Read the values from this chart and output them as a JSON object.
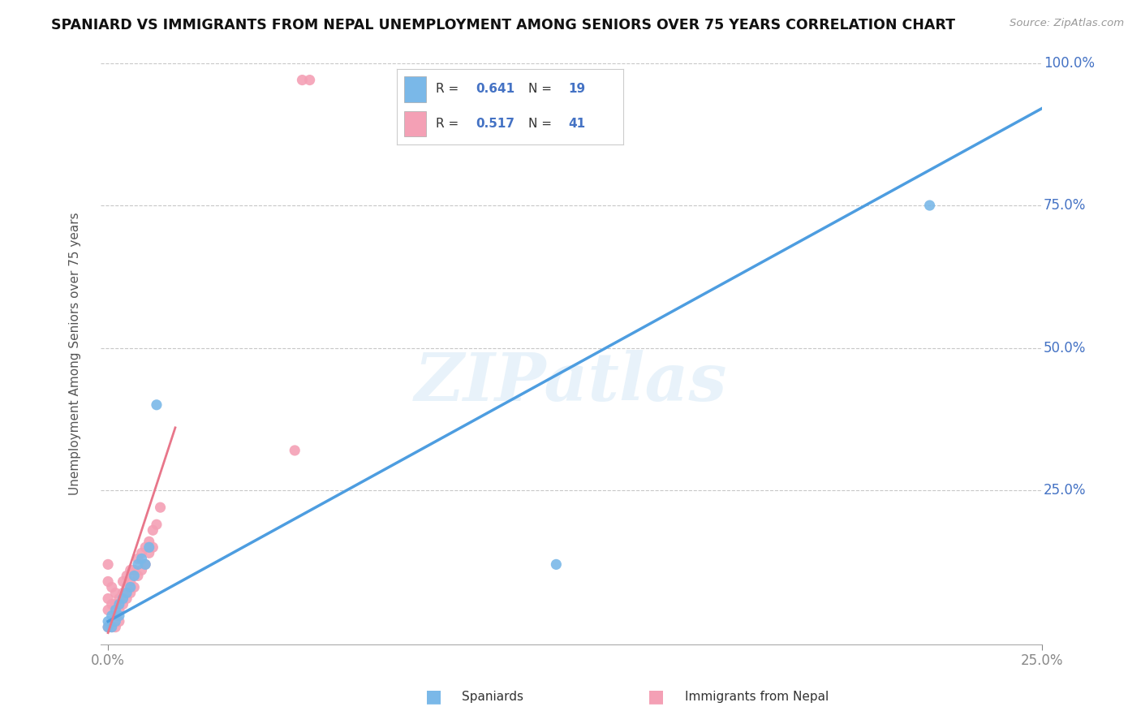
{
  "title": "SPANIARD VS IMMIGRANTS FROM NEPAL UNEMPLOYMENT AMONG SENIORS OVER 75 YEARS CORRELATION CHART",
  "source": "Source: ZipAtlas.com",
  "ylabel": "Unemployment Among Seniors over 75 years",
  "xlabel_blue": "Spaniards",
  "xlabel_pink": "Immigrants from Nepal",
  "xlim": [
    -0.002,
    0.25
  ],
  "ylim": [
    -0.02,
    1.0
  ],
  "R_blue": 0.641,
  "N_blue": 19,
  "R_pink": 0.517,
  "N_pink": 41,
  "color_blue": "#7ab8e8",
  "color_pink": "#f4a0b5",
  "trend_blue": "#4d9de0",
  "trend_pink": "#e8768a",
  "watermark": "ZIPatlas",
  "blue_scatter_x": [
    0.0,
    0.0,
    0.001,
    0.001,
    0.002,
    0.002,
    0.003,
    0.003,
    0.004,
    0.005,
    0.006,
    0.007,
    0.008,
    0.009,
    0.01,
    0.011,
    0.013,
    0.12,
    0.22
  ],
  "blue_scatter_y": [
    0.01,
    0.02,
    0.01,
    0.03,
    0.02,
    0.04,
    0.03,
    0.05,
    0.06,
    0.07,
    0.08,
    0.1,
    0.12,
    0.13,
    0.12,
    0.15,
    0.4,
    0.12,
    0.75
  ],
  "pink_scatter_x": [
    0.0,
    0.0,
    0.0,
    0.0,
    0.0,
    0.001,
    0.001,
    0.001,
    0.002,
    0.002,
    0.002,
    0.002,
    0.003,
    0.003,
    0.003,
    0.004,
    0.004,
    0.004,
    0.005,
    0.005,
    0.005,
    0.006,
    0.006,
    0.006,
    0.007,
    0.007,
    0.008,
    0.008,
    0.009,
    0.009,
    0.01,
    0.01,
    0.011,
    0.011,
    0.012,
    0.012,
    0.013,
    0.014,
    0.05,
    0.052,
    0.054
  ],
  "pink_scatter_y": [
    0.01,
    0.04,
    0.06,
    0.09,
    0.12,
    0.01,
    0.05,
    0.08,
    0.01,
    0.03,
    0.05,
    0.07,
    0.02,
    0.04,
    0.06,
    0.05,
    0.07,
    0.09,
    0.06,
    0.08,
    0.1,
    0.07,
    0.09,
    0.11,
    0.08,
    0.11,
    0.1,
    0.13,
    0.11,
    0.14,
    0.12,
    0.15,
    0.14,
    0.16,
    0.15,
    0.18,
    0.19,
    0.22,
    0.32,
    0.97,
    0.97
  ],
  "blue_trend_x": [
    0.0,
    0.25
  ],
  "blue_trend_y": [
    0.02,
    0.92
  ],
  "pink_trend_x": [
    0.0,
    0.018
  ],
  "pink_trend_y": [
    0.0,
    0.36
  ],
  "ytick_positions": [
    0.25,
    0.5,
    0.75,
    1.0
  ],
  "ytick_labels": [
    "25.0%",
    "50.0%",
    "75.0%",
    "100.0%"
  ],
  "xtick_positions": [
    0.0,
    0.25
  ],
  "xtick_labels": [
    "0.0%",
    "25.0%"
  ]
}
